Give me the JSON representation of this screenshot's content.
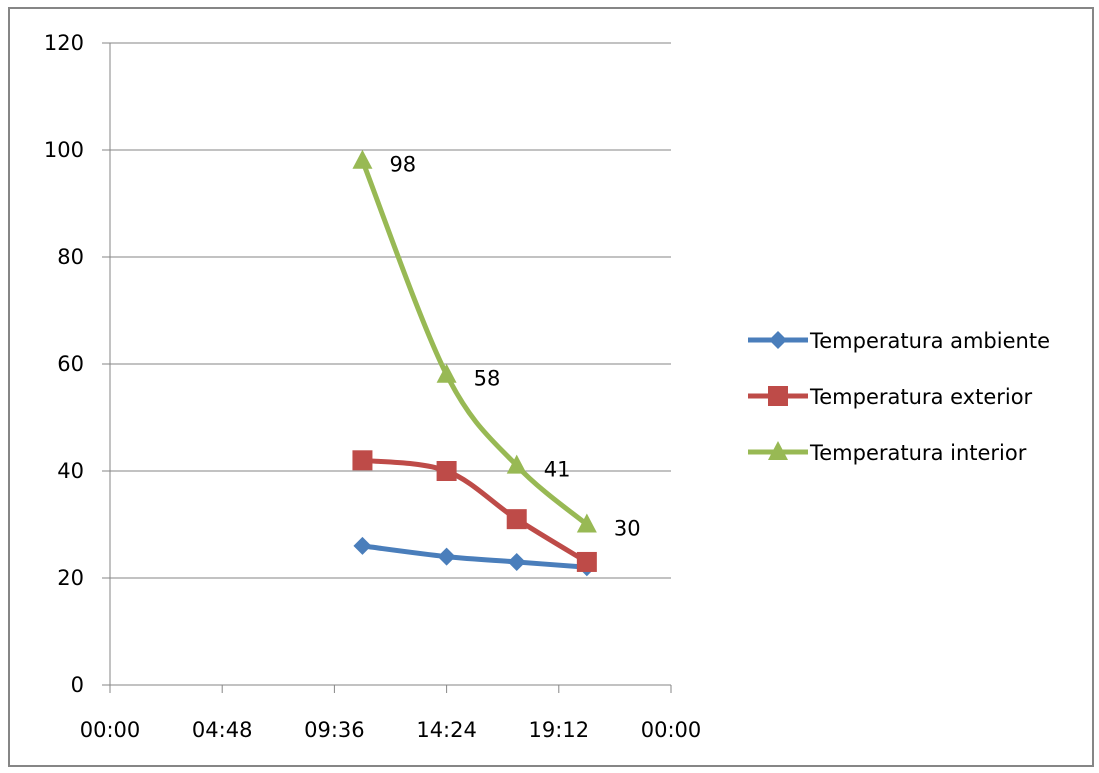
{
  "chart_data": {
    "type": "line",
    "title": "",
    "xlabel": "",
    "ylabel": "",
    "x_ticks": [
      "00:00",
      "04:48",
      "09:36",
      "14:24",
      "19:12",
      "00:00"
    ],
    "y_ticks": [
      "0",
      "20",
      "40",
      "60",
      "80",
      "100",
      "120"
    ],
    "xlim": [
      "00:00",
      "24:00"
    ],
    "ylim": [
      0,
      120
    ],
    "grid": "horizontal major gridlines",
    "legend_position": "right",
    "x": [
      "10:48",
      "14:24",
      "17:24",
      "20:24"
    ],
    "series": [
      {
        "name": "Temperatura ambiente",
        "marker": "diamond",
        "color": "#4a7ebb",
        "values": [
          26,
          24,
          23,
          22
        ],
        "data_labels": []
      },
      {
        "name": "Temperatura exterior",
        "marker": "square",
        "color": "#be4b48",
        "values": [
          42,
          40,
          31,
          23
        ],
        "data_labels": []
      },
      {
        "name": "Temperatura interior",
        "marker": "triangle",
        "color": "#98b954",
        "values": [
          98,
          58,
          41,
          30
        ],
        "data_labels": [
          "98",
          "58",
          "41",
          "30"
        ]
      }
    ]
  }
}
